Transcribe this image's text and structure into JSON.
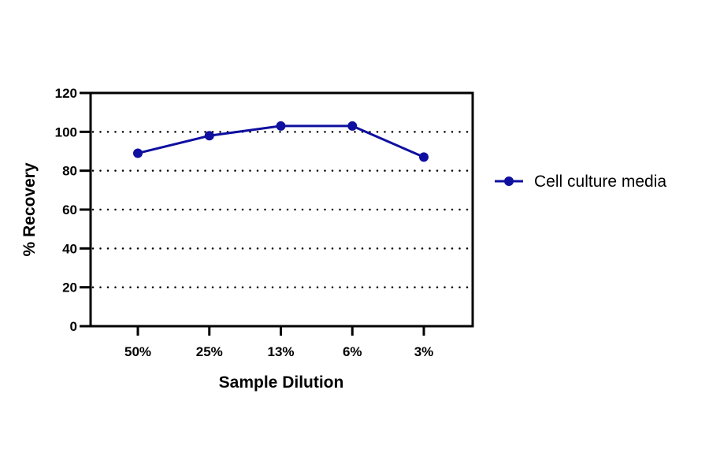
{
  "chart_data": {
    "type": "line",
    "title": "",
    "xlabel": "Sample Dilution",
    "ylabel": "% Recovery",
    "categories": [
      "50%",
      "25%",
      "13%",
      "6%",
      "3%"
    ],
    "series": [
      {
        "name": "Cell culture media",
        "values": [
          89,
          98,
          103,
          103,
          87
        ],
        "color": "#0f0fa0"
      }
    ],
    "ylim": [
      0,
      120
    ],
    "yticks": [
      0,
      20,
      40,
      60,
      80,
      100,
      120
    ],
    "grid": "horizontal dotted at 20,40,60,80,100",
    "legend": "right"
  }
}
